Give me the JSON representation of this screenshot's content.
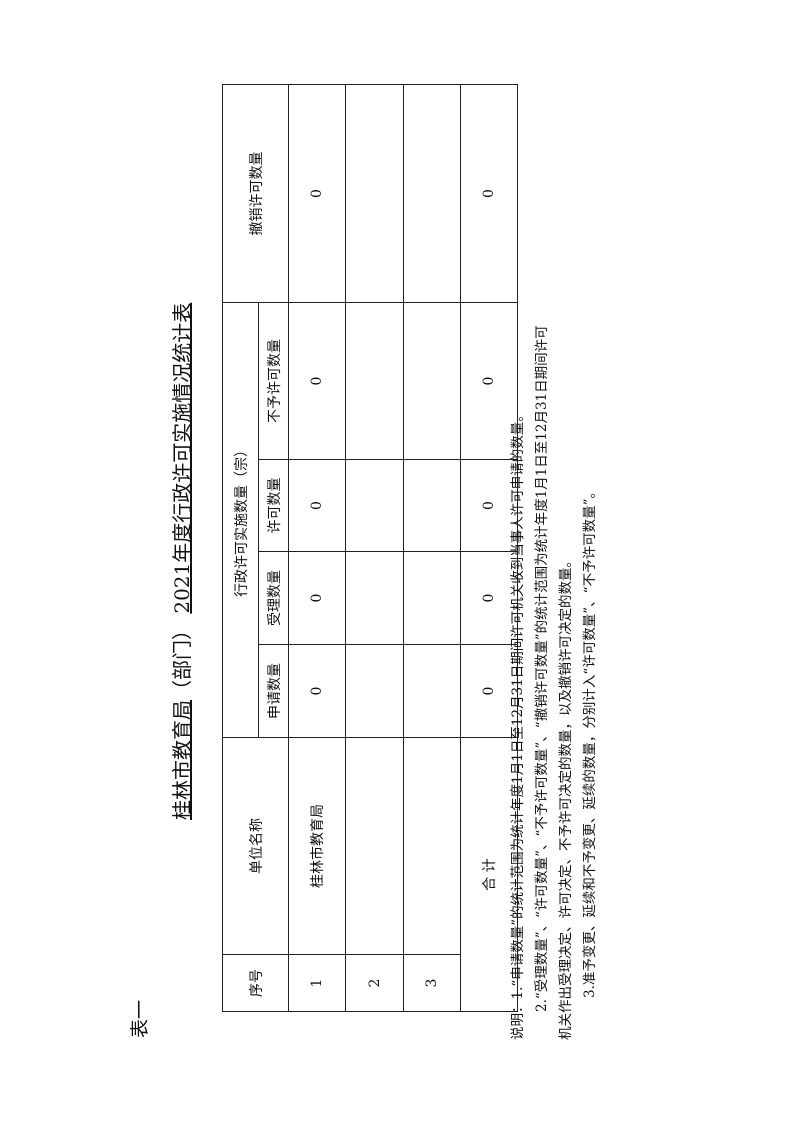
{
  "label": "表一",
  "title": {
    "department": "桂林市教育局",
    "suffix": "（部门）",
    "year": "2021",
    "rest": "年度行政许可实施情况统计表"
  },
  "headers": {
    "no": "序号",
    "unit": "单位名称",
    "group": "行政许可实施数量（宗）",
    "apply": "申请数量",
    "accept": "受理数量",
    "permit": "许可数量",
    "deny": "不予许可数量",
    "revoke": "撤销许可数量"
  },
  "rows": [
    {
      "no": "1",
      "unit": "桂林市教育局",
      "apply": "0",
      "accept": "0",
      "permit": "0",
      "deny": "0",
      "revoke": "0"
    },
    {
      "no": "2",
      "unit": "",
      "apply": "",
      "accept": "",
      "permit": "",
      "deny": "",
      "revoke": ""
    },
    {
      "no": "3",
      "unit": "",
      "apply": "",
      "accept": "",
      "permit": "",
      "deny": "",
      "revoke": ""
    }
  ],
  "total": {
    "label": "合 计",
    "apply": "0",
    "accept": "0",
    "permit": "0",
    "deny": "0",
    "revoke": "0"
  },
  "notes": [
    "说明：1.“申请数量”的统计范围为统计年度1月1日至12月31日期间许可机关收到当事人许可申请的数量。",
    "2.“受理数量”、“许可数量”、“不予许可数量”、“撤销许可数量”的统计范围为统计年度1月1日至12月31日期间许可",
    "机关作出受理决定、许可决定、不予许可决定的数量，以及撤销许可决定的数量。",
    "3.准予变更、延续和不予变更、延续的数量，分别计入“许可数量”、“不予许可数量”。"
  ]
}
